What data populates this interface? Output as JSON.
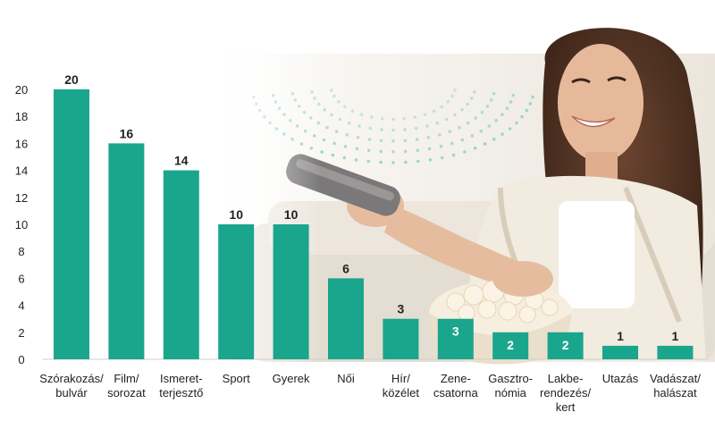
{
  "chart_data": {
    "type": "bar",
    "categories": [
      [
        "Szórakozás/",
        "bulvár"
      ],
      [
        "Film/",
        "sorozat"
      ],
      [
        "Ismeret-",
        "terjesztő"
      ],
      [
        "Sport"
      ],
      [
        "Gyerek"
      ],
      [
        "Női"
      ],
      [
        "Hír/",
        "közélet"
      ],
      [
        "Zene-",
        "csatorna"
      ],
      [
        "Gasztro-",
        "nómia"
      ],
      [
        "Lakbe-",
        "rendezés/",
        "kert"
      ],
      [
        "Utazás"
      ],
      [
        "Vadászat/",
        "halászat"
      ]
    ],
    "values": [
      20,
      16,
      14,
      10,
      10,
      6,
      3,
      3,
      2,
      2,
      1,
      1
    ],
    "data_labels": [
      "20",
      "16",
      "14",
      "10",
      "10",
      "6",
      "3",
      "3",
      "2",
      "2",
      "1",
      "1"
    ],
    "title": "",
    "xlabel": "",
    "ylabel": "",
    "ylim": [
      0,
      20
    ],
    "yticks": [
      "0",
      "2",
      "4",
      "6",
      "8",
      "10",
      "12",
      "14",
      "16",
      "18",
      "20"
    ],
    "grid": false,
    "legend": "none",
    "bar_color": "#1aa58d",
    "label_color_outside": "#222222",
    "label_color_inside": "#ffffff",
    "background_photo": "woman-with-remote-and-popcorn"
  }
}
